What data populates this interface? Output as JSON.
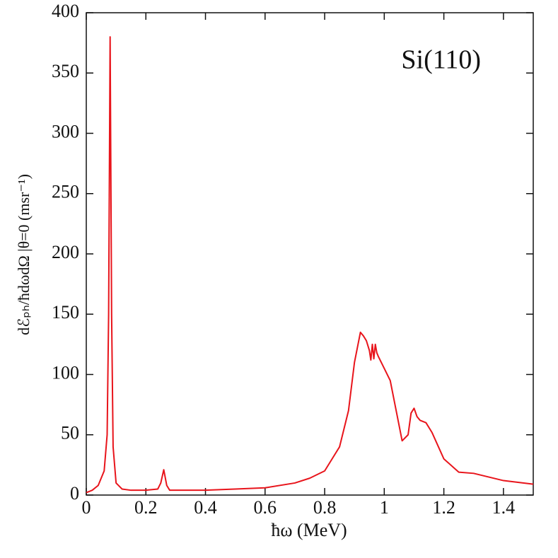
{
  "chart_data": {
    "type": "line",
    "annotation": "Si(110)",
    "xlabel": "ħω (MeV)",
    "ylabel": "dℰₚₕ/ħdωdΩ |θ=0 (msr⁻¹)",
    "x": [
      0,
      0.02,
      0.04,
      0.06,
      0.07,
      0.075,
      0.08,
      0.085,
      0.09,
      0.1,
      0.12,
      0.15,
      0.2,
      0.24,
      0.25,
      0.26,
      0.27,
      0.28,
      0.3,
      0.4,
      0.5,
      0.6,
      0.7,
      0.75,
      0.8,
      0.82,
      0.85,
      0.88,
      0.9,
      0.92,
      0.93,
      0.94,
      0.95,
      0.955,
      0.96,
      0.965,
      0.97,
      0.975,
      0.98,
      1.0,
      1.02,
      1.04,
      1.06,
      1.08,
      1.09,
      1.1,
      1.11,
      1.12,
      1.14,
      1.16,
      1.2,
      1.25,
      1.3,
      1.4,
      1.5
    ],
    "values": [
      2,
      4,
      8,
      20,
      50,
      150,
      380,
      150,
      40,
      10,
      5,
      4,
      4,
      5,
      10,
      21,
      8,
      4,
      4,
      4,
      5,
      6,
      10,
      14,
      20,
      28,
      40,
      70,
      110,
      135,
      132,
      128,
      120,
      112,
      125,
      113,
      125,
      118,
      115,
      105,
      95,
      70,
      45,
      50,
      68,
      72,
      65,
      62,
      60,
      52,
      30,
      19,
      18,
      12,
      9
    ],
    "color": "#e8141b",
    "xlim": [
      0,
      1.5
    ],
    "xticks": [
      0,
      0.2,
      0.4,
      0.6,
      0.8,
      1,
      1.2,
      1.4
    ],
    "ylim": [
      0,
      400
    ],
    "yticks": [
      0,
      50,
      100,
      150,
      200,
      250,
      300,
      350,
      400
    ]
  }
}
